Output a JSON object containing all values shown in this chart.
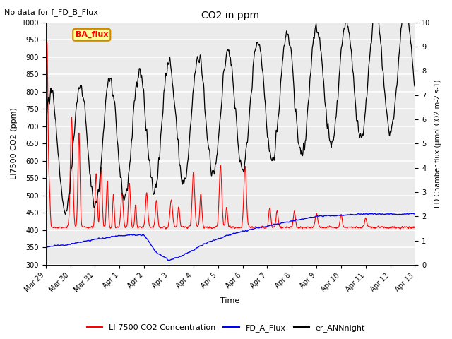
{
  "title": "CO2 in ppm",
  "subtitle": "No data for f_FD_B_Flux",
  "xlabel": "Time",
  "ylabel_left": "LI7500 CO2 (ppm)",
  "ylabel_right": "FD Chamber flux (μmol CO2 m-2 s-1)",
  "ylim_left": [
    300,
    1000
  ],
  "ylim_right": [
    0.0,
    10.0
  ],
  "legend_labels": [
    "LI-7500 CO2 Concentration",
    "FD_A_Flux",
    "er_ANNnight"
  ],
  "legend_colors": [
    "red",
    "blue",
    "black"
  ],
  "ba_flux_label": "BA_flux",
  "ba_flux_box_color": "#FFFF99",
  "background_color": "#ebebeb",
  "grid_color": "white",
  "xtick_labels": [
    "Mar 29",
    "Mar 30",
    "Mar 31",
    "Apr 1",
    "Apr 2",
    "Apr 3",
    "Apr 4",
    "Apr 5",
    "Apr 6",
    "Apr 7",
    "Apr 8",
    "Apr 9",
    "Apr 10",
    "Apr 11",
    "Apr 12",
    "Apr 13"
  ],
  "xtick_positions": [
    0,
    1,
    2,
    3,
    4,
    5,
    6,
    7,
    8,
    9,
    10,
    11,
    12,
    13,
    14,
    15
  ]
}
